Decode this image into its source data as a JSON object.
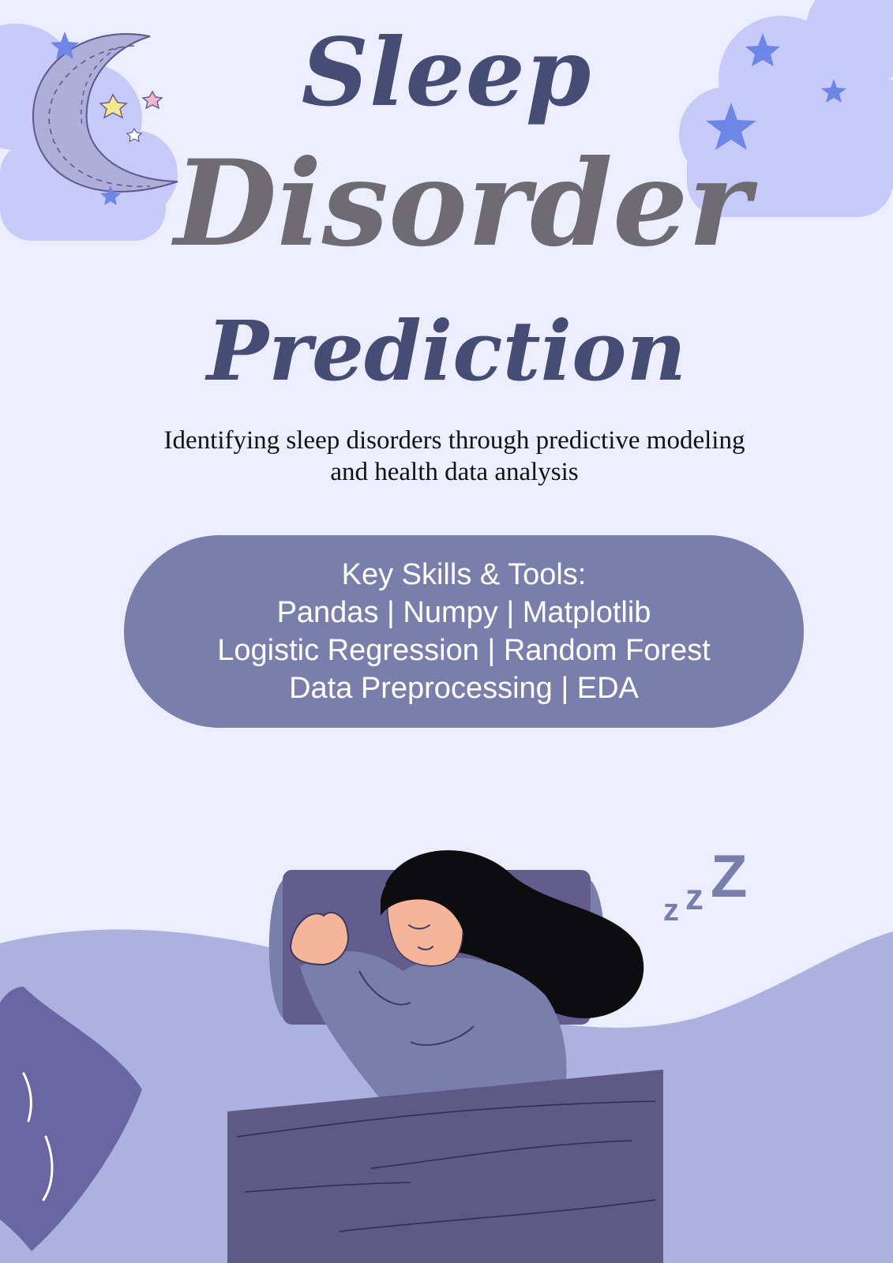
{
  "poster": {
    "title_line1": "Sleep",
    "title_line2": "Disorder",
    "title_line3": "Prediction",
    "subtitle_line1": "Identifying sleep disorders through predictive modeling",
    "subtitle_line2": "and health data analysis"
  },
  "skills": {
    "heading": "Key Skills & Tools:",
    "line1": "Pandas | Numpy | Matplotlib",
    "line2": "Logistic Regression | Random Forest",
    "line3": "Data Preprocessing | EDA"
  },
  "decor": {
    "snore_z_small": "z",
    "snore_z_medium": "z",
    "snore_z_large": "Z",
    "icons": [
      "moon-icon",
      "star-icon",
      "cloud-icon",
      "pillow-icon",
      "sleeping-woman-illustration",
      "blanket-icon"
    ]
  },
  "colors": {
    "background": "#eceefd",
    "title_dark": "#474c74",
    "title_grey": "#6e6c72",
    "pill": "#7a7eab",
    "cloud": "#c7c9f8",
    "star": "#6d87e6",
    "hill": "#adb1e0",
    "blanket": "#5e5985"
  }
}
